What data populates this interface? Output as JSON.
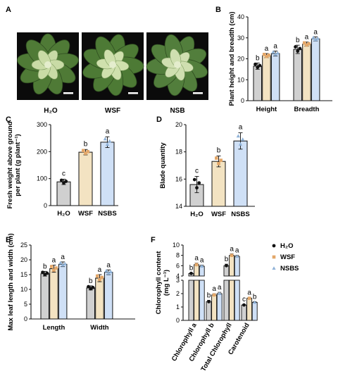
{
  "panels": {
    "A": {
      "letter": "A",
      "images": [
        {
          "label": "H₂O",
          "leaf": "#4f7a36",
          "center": "#c9dba6"
        },
        {
          "label": "WSF",
          "leaf": "#4d7a35",
          "center": "#cfe0ad"
        },
        {
          "label": "NSB",
          "leaf": "#527e3c",
          "center": "#cfdfb0"
        }
      ]
    },
    "B": {
      "letter": "B"
    },
    "C": {
      "letter": "C"
    },
    "D": {
      "letter": "D"
    },
    "E": {
      "letter": "E"
    },
    "F": {
      "letter": "F"
    }
  },
  "colors": {
    "H2O": "#d0d0d0",
    "WSF": "#f3e3c2",
    "NSBS": "#cfe0f6",
    "edge": "#111111",
    "pt_H2O": "#111111",
    "pt_WSF": "#e3a769",
    "pt_NSBS": "#8fb2d8"
  },
  "chart_data": [
    {
      "id": "B",
      "type": "bar",
      "ylabel": "Plant height and breadth (cm)",
      "categories": [
        "Height",
        "Breadth"
      ],
      "ylim": [
        0,
        40
      ],
      "yticks": [
        "0",
        "10",
        "20",
        "30",
        "40"
      ],
      "series": [
        {
          "values": [
            16.5,
            24.5
          ],
          "err": [
            1.5,
            2.0
          ],
          "sig": [
            "b",
            "b"
          ]
        },
        {
          "values": [
            21.5,
            27.0
          ],
          "err": [
            1.0,
            1.0
          ],
          "sig": [
            "a",
            "a"
          ]
        },
        {
          "values": [
            22.5,
            29.5
          ],
          "err": [
            1.2,
            1.0
          ],
          "sig": [
            "a",
            "a"
          ]
        }
      ]
    },
    {
      "id": "C",
      "type": "bar",
      "ylabel": "Fresh weight above ground per plant (g plant⁻¹)",
      "categories": [
        "H₂O",
        "WSF",
        "NSBS"
      ],
      "ylim": [
        0,
        300
      ],
      "yticks": [
        "0",
        "100",
        "200",
        "300"
      ],
      "values": [
        88,
        198,
        235
      ],
      "err": [
        10,
        10,
        20
      ],
      "sig": [
        "c",
        "b",
        "a"
      ]
    },
    {
      "id": "D",
      "type": "bar",
      "ylabel": "Blade quantity",
      "categories": [
        "H₂O",
        "WSF",
        "NSBS"
      ],
      "ylim": [
        14,
        20
      ],
      "yticks": [
        "14",
        "16",
        "18",
        "20"
      ],
      "values": [
        15.6,
        17.3,
        18.8
      ],
      "err": [
        0.6,
        0.4,
        0.6
      ],
      "sig": [
        "c",
        "b",
        "a"
      ]
    },
    {
      "id": "E",
      "type": "bar",
      "ylabel": "Max leaf length and width (cm)",
      "categories": [
        "Length",
        "Width"
      ],
      "ylim": [
        0,
        25
      ],
      "yticks": [
        "0",
        "5",
        "10",
        "15",
        "20",
        "25"
      ],
      "series": [
        {
          "values": [
            15.3,
            10.5
          ],
          "err": [
            0.8,
            0.7
          ],
          "sig": [
            "b",
            "b"
          ]
        },
        {
          "values": [
            17.0,
            13.8
          ],
          "err": [
            1.2,
            1.2
          ],
          "sig": [
            "a",
            "a"
          ]
        },
        {
          "values": [
            18.5,
            15.8
          ],
          "err": [
            0.8,
            0.8
          ],
          "sig": [
            "a",
            "a"
          ]
        }
      ]
    },
    {
      "id": "F",
      "type": "bar",
      "ylabel": "Chlorophyll content (mg L⁻¹)",
      "categories": [
        "Chlorophyll a",
        "Chlorophyll b",
        "Total Chlorophyll",
        "Carotenoid"
      ],
      "upper_ylim": [
        4,
        10
      ],
      "upper_yticks": [
        "4",
        "6",
        "8",
        "10"
      ],
      "lower_ylim": [
        0,
        3
      ],
      "lower_yticks": [
        "0",
        "1",
        "2",
        "3"
      ],
      "series": [
        {
          "values": [
            4.5,
            1.4,
            6.0,
            1.15
          ],
          "err": [
            0.1,
            0.1,
            0.3,
            0.05
          ],
          "sig": [
            "b",
            "b",
            "b",
            "c"
          ]
        },
        {
          "values": [
            6.2,
            1.9,
            8.0,
            1.65
          ],
          "err": [
            0.3,
            0.1,
            0.3,
            0.05
          ],
          "sig": [
            "a",
            "a",
            "a",
            "a"
          ]
        },
        {
          "values": [
            5.9,
            2.0,
            7.8,
            1.35
          ],
          "err": [
            0.2,
            0.1,
            0.2,
            0.05
          ],
          "sig": [
            "a",
            "a",
            "a",
            "b"
          ]
        }
      ],
      "legend": [
        "H₂O",
        "WSF",
        "NSBS"
      ],
      "legend_position": "right"
    }
  ]
}
